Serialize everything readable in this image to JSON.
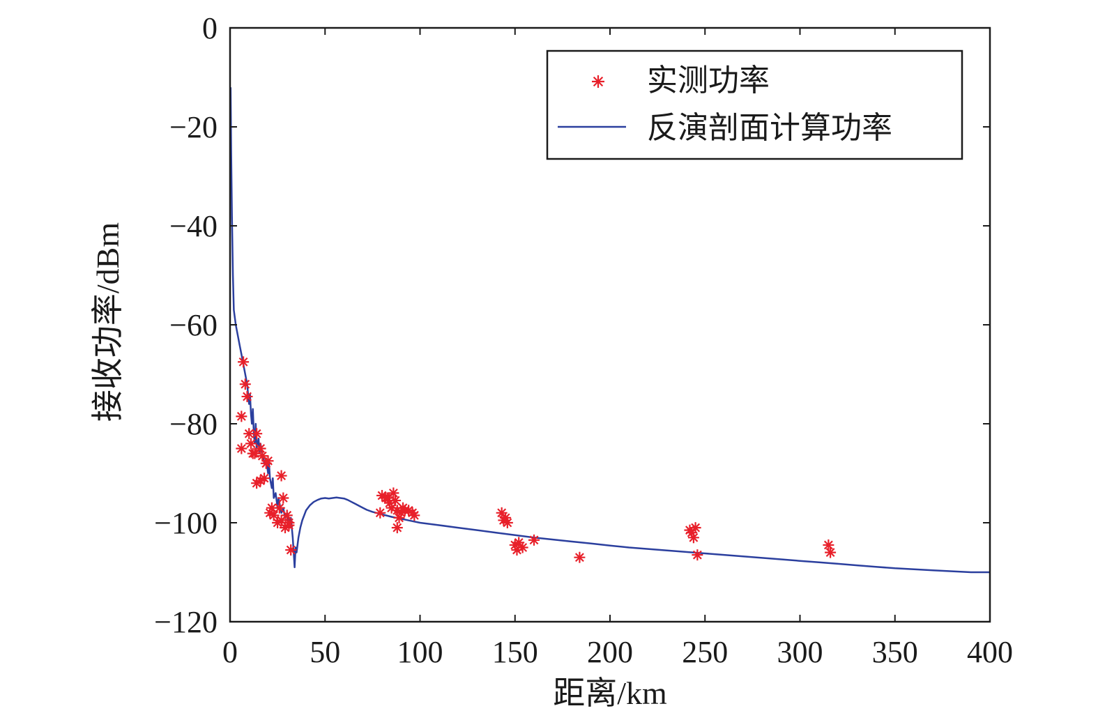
{
  "chart_data": {
    "type": "line",
    "xlabel": "距离/km",
    "ylabel": "接收功率/dBm",
    "xlim": [
      0,
      400
    ],
    "ylim": [
      -120,
      0
    ],
    "xticks": [
      0,
      50,
      100,
      150,
      200,
      250,
      300,
      350,
      400
    ],
    "xtick_labels": [
      "0",
      "50",
      "100",
      "150",
      "200",
      "250",
      "300",
      "350",
      "400"
    ],
    "yticks": [
      0,
      -20,
      -40,
      -60,
      -80,
      -100,
      -120
    ],
    "ytick_labels": [
      "0",
      "−20",
      "−40",
      "−60",
      "−80",
      "−100",
      "−120"
    ],
    "grid": false,
    "legend_position": "top-right",
    "colors": {
      "measured": "#e8202a",
      "computed": "#2b3f9e"
    },
    "series": [
      {
        "name": "实测功率",
        "kind": "scatter",
        "marker": "asterisk",
        "color": "#e8202a",
        "x": [
          7,
          8,
          9,
          6,
          10,
          6,
          11,
          12,
          14,
          13,
          16,
          17,
          19,
          20,
          14,
          16,
          18,
          22,
          23,
          21,
          25,
          26,
          27,
          28,
          29,
          30,
          31,
          32,
          27,
          31,
          79,
          80,
          82,
          83,
          84,
          85,
          86,
          87,
          88,
          89,
          90,
          91,
          92,
          94,
          96,
          97,
          88,
          143,
          144,
          145,
          146,
          150,
          151,
          152,
          154,
          160,
          184,
          242,
          243,
          244,
          245,
          246,
          315,
          316
        ],
        "y": [
          -67.5,
          -72,
          -74.5,
          -78.5,
          -82,
          -85,
          -84,
          -86,
          -82,
          -86,
          -85,
          -86.5,
          -88,
          -87.5,
          -92,
          -91.5,
          -91,
          -97,
          -98.5,
          -98,
          -100,
          -97,
          -99.5,
          -95,
          -101,
          -98.5,
          -100,
          -105.5,
          -90.5,
          -100.5,
          -98,
          -94.5,
          -95,
          -95,
          -96,
          -97,
          -94,
          -95.5,
          -97.5,
          -99,
          -98,
          -97,
          -97.5,
          -97.5,
          -98,
          -98.5,
          -101,
          -98,
          -99.5,
          -99,
          -100,
          -104.5,
          -105.5,
          -104,
          -105,
          -103.5,
          -107,
          -101.5,
          -102,
          -103,
          -101,
          -106.5,
          -104.5,
          -106
        ]
      },
      {
        "name": "反演剖面计算功率",
        "kind": "line",
        "color": "#2b3f9e",
        "x": [
          0.3,
          0.6,
          1,
          1.5,
          2,
          3,
          4,
          5,
          6,
          7,
          8,
          9,
          10,
          10.5,
          11,
          11.5,
          12,
          12.5,
          13,
          13.5,
          14,
          15,
          15.5,
          16,
          17,
          18,
          19,
          20,
          20.5,
          21,
          22,
          22.5,
          23,
          24,
          25,
          25.5,
          26,
          27,
          28,
          29,
          30,
          31,
          32,
          32.5,
          33,
          33.5,
          34,
          34.5,
          35,
          36,
          37,
          38,
          39,
          40,
          42,
          44,
          46,
          48,
          50,
          52,
          54,
          56,
          58,
          60,
          62,
          64,
          66,
          68,
          70,
          72,
          75,
          80,
          85,
          90,
          95,
          100,
          110,
          120,
          130,
          140,
          150,
          160,
          170,
          180,
          190,
          200,
          210,
          220,
          230,
          240,
          250,
          260,
          270,
          280,
          290,
          300,
          310,
          320,
          330,
          340,
          350,
          360,
          370,
          380,
          390,
          400
        ],
        "y": [
          -12,
          -25,
          -38,
          -50,
          -57,
          -60,
          -62,
          -64,
          -66,
          -68,
          -70,
          -72,
          -76,
          -74,
          -78,
          -80,
          -77,
          -82,
          -84,
          -80,
          -85,
          -83,
          -86,
          -84,
          -86,
          -88,
          -87,
          -90,
          -88,
          -91,
          -93,
          -91,
          -95,
          -94,
          -97,
          -95,
          -96,
          -98,
          -97,
          -99,
          -98,
          -100,
          -99,
          -101,
          -103,
          -106,
          -109,
          -105,
          -106,
          -103,
          -101,
          -99.5,
          -98.5,
          -97.5,
          -96.5,
          -95.8,
          -95.4,
          -95.1,
          -95,
          -95.1,
          -95,
          -94.9,
          -95,
          -95.1,
          -95.4,
          -95.8,
          -96.2,
          -96.6,
          -97,
          -97.4,
          -97.8,
          -98.3,
          -98.8,
          -99.2,
          -99.6,
          -100,
          -100.5,
          -101,
          -101.5,
          -102,
          -102.5,
          -103,
          -103.4,
          -103.8,
          -104.2,
          -104.6,
          -105,
          -105.3,
          -105.6,
          -105.9,
          -106.2,
          -106.5,
          -106.8,
          -107.1,
          -107.4,
          -107.7,
          -108,
          -108.3,
          -108.6,
          -108.9,
          -109.2,
          -109.4,
          -109.6,
          -109.8,
          -110,
          -110
        ]
      }
    ]
  }
}
